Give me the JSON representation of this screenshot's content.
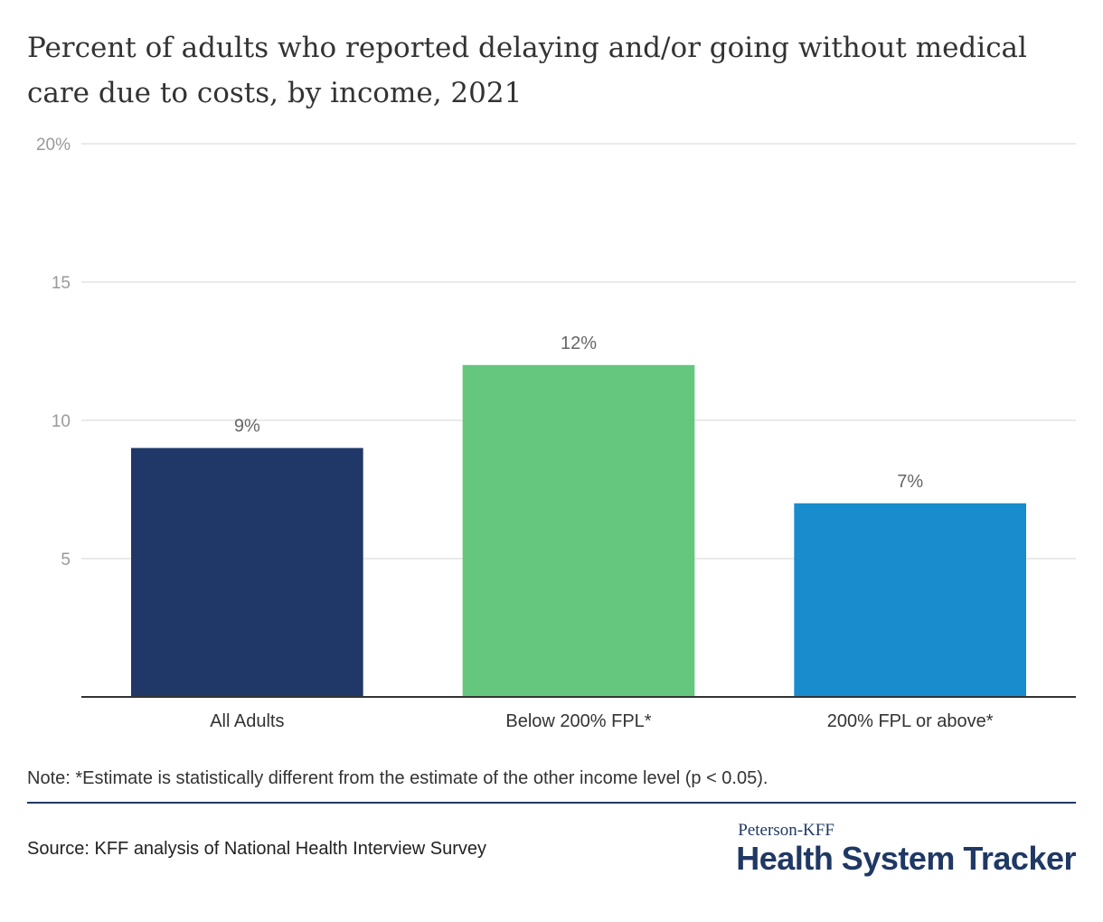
{
  "chart_data": {
    "type": "bar",
    "title": "Percent of adults who reported delaying and/or going without medical care due to costs, by income, 2021",
    "categories": [
      "All Adults",
      "Below 200% FPL*",
      "200% FPL or above*"
    ],
    "values": [
      9,
      12,
      7
    ],
    "value_labels": [
      "9%",
      "12%",
      "7%"
    ],
    "colors": [
      "#1f3868",
      "#65c67e",
      "#188ccc"
    ],
    "ylim": [
      0,
      20
    ],
    "yticks": [
      5,
      10,
      15,
      20
    ],
    "ytick_labels": [
      "5",
      "10",
      "15",
      "20%"
    ],
    "grid": true,
    "xlabel": "",
    "ylabel": ""
  },
  "note": "Note: *Estimate is statistically different from the estimate of the other income level (p < 0.05).",
  "source": "Source: KFF analysis of National Health Interview Survey",
  "logo": {
    "top": "Peterson-KFF",
    "main": "Health System Tracker",
    "color": "#1f3864"
  }
}
